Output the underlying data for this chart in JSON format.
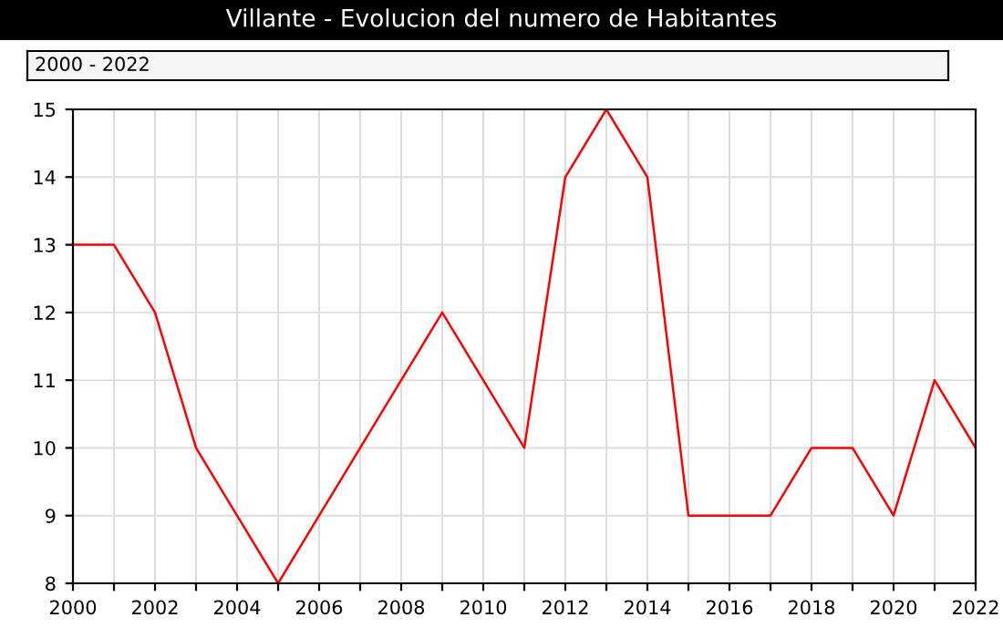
{
  "chart_data": {
    "type": "line",
    "title": "Villante - Evolucion del numero de Habitantes",
    "annotations": [
      "2000 - 2022"
    ],
    "x": [
      2000,
      2001,
      2002,
      2003,
      2004,
      2005,
      2006,
      2007,
      2008,
      2009,
      2010,
      2011,
      2012,
      2013,
      2014,
      2015,
      2016,
      2017,
      2018,
      2019,
      2020,
      2021,
      2022
    ],
    "series": [
      {
        "color": "#ff0000",
        "values": [
          13,
          13,
          12,
          10,
          9,
          8,
          9,
          10,
          11,
          12,
          11,
          10,
          14,
          15,
          14,
          9,
          9,
          9,
          10,
          10,
          9,
          11,
          10
        ]
      }
    ],
    "xlim": [
      2000,
      2022
    ],
    "ylim": [
      8,
      15
    ],
    "xticks": [
      2000,
      {
        "value": 2001,
        "label": null
      },
      2002,
      {
        "value": 2003,
        "label": null
      },
      2004,
      {
        "value": 2005,
        "label": null
      },
      2006,
      {
        "value": 2007,
        "label": null
      },
      2008,
      {
        "value": 2009,
        "label": null
      },
      2010,
      {
        "value": 2011,
        "label": null
      },
      2012,
      {
        "value": 2013,
        "label": null
      },
      2014,
      {
        "value": 2015,
        "label": null
      },
      2016,
      {
        "value": 2017,
        "label": null
      },
      2018,
      {
        "value": 2019,
        "label": null
      },
      2020,
      {
        "value": 2021,
        "label": null
      },
      2022
    ],
    "yticks": [
      8,
      9,
      10,
      11,
      12,
      13,
      14,
      15
    ],
    "grid": true,
    "marker": "none",
    "line_style": "solid",
    "legend": false
  }
}
